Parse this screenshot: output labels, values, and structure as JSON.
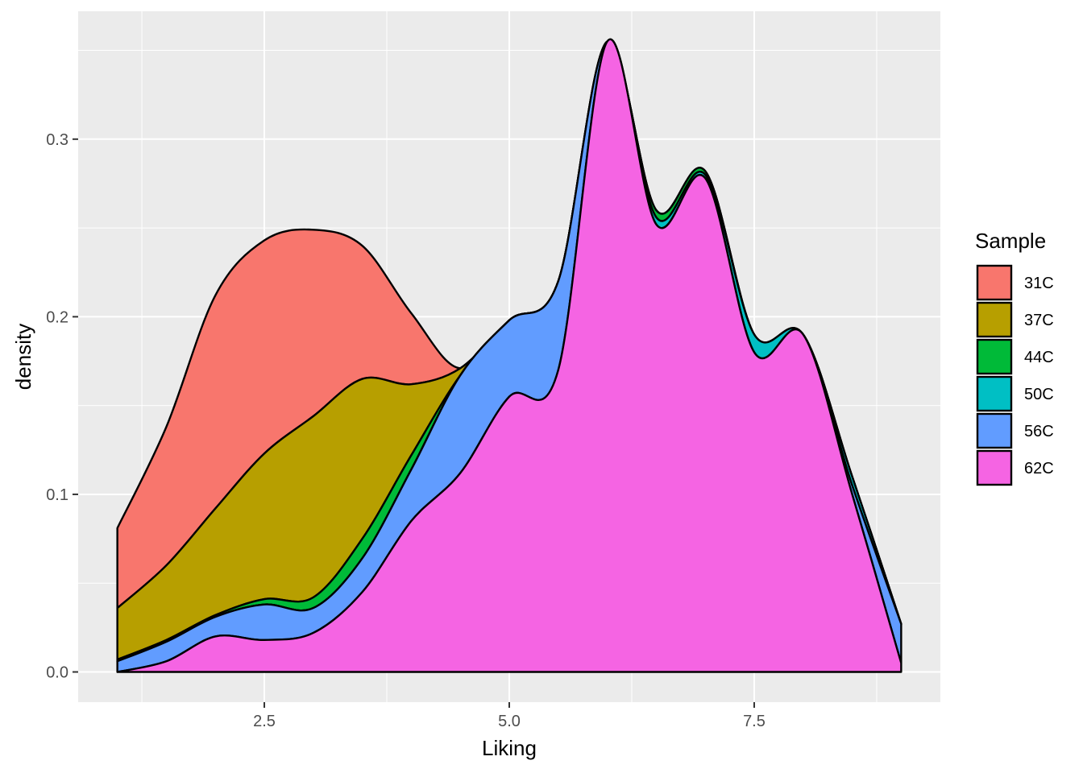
{
  "chart_data": {
    "type": "area",
    "stacked": true,
    "xlabel": "Liking",
    "ylabel": "density",
    "xlim": [
      0.6,
      9.4
    ],
    "ylim": [
      -0.017,
      0.372
    ],
    "x_ticks": [
      2.5,
      5.0,
      7.5
    ],
    "x_tick_labels": [
      "2.5",
      "5.0",
      "7.5"
    ],
    "y_ticks": [
      0.0,
      0.1,
      0.2,
      0.3
    ],
    "y_tick_labels": [
      "0.0",
      "0.1",
      "0.2",
      "0.3"
    ],
    "grid": true,
    "legend": {
      "title": "Sample",
      "placement": "right"
    },
    "x": [
      1.0,
      1.5,
      2.0,
      2.5,
      3.0,
      3.5,
      4.0,
      4.5,
      5.0,
      5.5,
      6.0,
      6.5,
      7.0,
      7.5,
      8.0,
      8.5,
      9.0
    ],
    "series": [
      {
        "name": "31C",
        "color": "#F8766D",
        "values": [
          0.045,
          0.078,
          0.12,
          0.12,
          0.105,
          0.075,
          0.04,
          0.0,
          0.0,
          0.0,
          0.0,
          0.0,
          0.0,
          0.0,
          0.0,
          0.0,
          0.0
        ]
      },
      {
        "name": "37C",
        "color": "#B79F00",
        "values": [
          0.029,
          0.042,
          0.06,
          0.082,
          0.102,
          0.09,
          0.04,
          0.004,
          0.0,
          0.0,
          0.0,
          0.0,
          0.0,
          0.0,
          0.0,
          0.0,
          0.0
        ]
      },
      {
        "name": "44C",
        "color": "#00BA38",
        "values": [
          0.001,
          0.001,
          0.001,
          0.003,
          0.006,
          0.011,
          0.008,
          0.0,
          0.0,
          0.0,
          0.0,
          0.004,
          0.002,
          0.0,
          0.0,
          0.0,
          0.0
        ]
      },
      {
        "name": "50C",
        "color": "#00BFC4",
        "values": [
          0.0,
          0.0,
          0.0,
          0.0,
          0.0,
          0.0,
          0.0,
          0.0,
          0.0,
          0.0,
          0.0,
          0.004,
          0.002,
          0.01,
          0.0,
          0.005,
          0.0
        ]
      },
      {
        "name": "56C",
        "color": "#619CFF",
        "values": [
          0.006,
          0.011,
          0.011,
          0.02,
          0.014,
          0.019,
          0.029,
          0.055,
          0.043,
          0.05,
          0.0,
          0.0,
          0.0,
          0.0,
          0.0,
          0.005,
          0.022
        ]
      },
      {
        "name": "62C",
        "color": "#F564E3",
        "values": [
          0.0,
          0.006,
          0.02,
          0.018,
          0.022,
          0.045,
          0.085,
          0.112,
          0.155,
          0.17,
          0.355,
          0.252,
          0.278,
          0.18,
          0.19,
          0.1,
          0.005
        ]
      }
    ]
  }
}
